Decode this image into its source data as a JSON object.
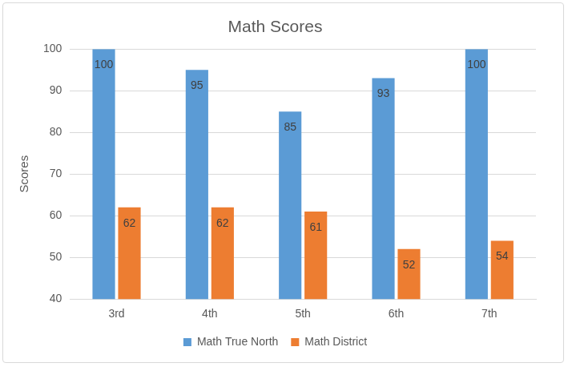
{
  "chart_data": {
    "type": "bar",
    "title": "Math Scores",
    "y_label": "Scores",
    "categories": [
      "3rd",
      "4th",
      "5th",
      "6th",
      "7th"
    ],
    "series": [
      {
        "name": "Math True North",
        "color": "#5b9bd5",
        "values": [
          100,
          95,
          85,
          93,
          100
        ]
      },
      {
        "name": "Math District",
        "color": "#ed7d31",
        "values": [
          62,
          62,
          61,
          52,
          54
        ]
      }
    ],
    "ylim": [
      40,
      100
    ],
    "yticks": [
      40,
      50,
      60,
      70,
      80,
      90,
      100
    ],
    "grid": true,
    "legend": "bottom",
    "data_labels": true
  }
}
